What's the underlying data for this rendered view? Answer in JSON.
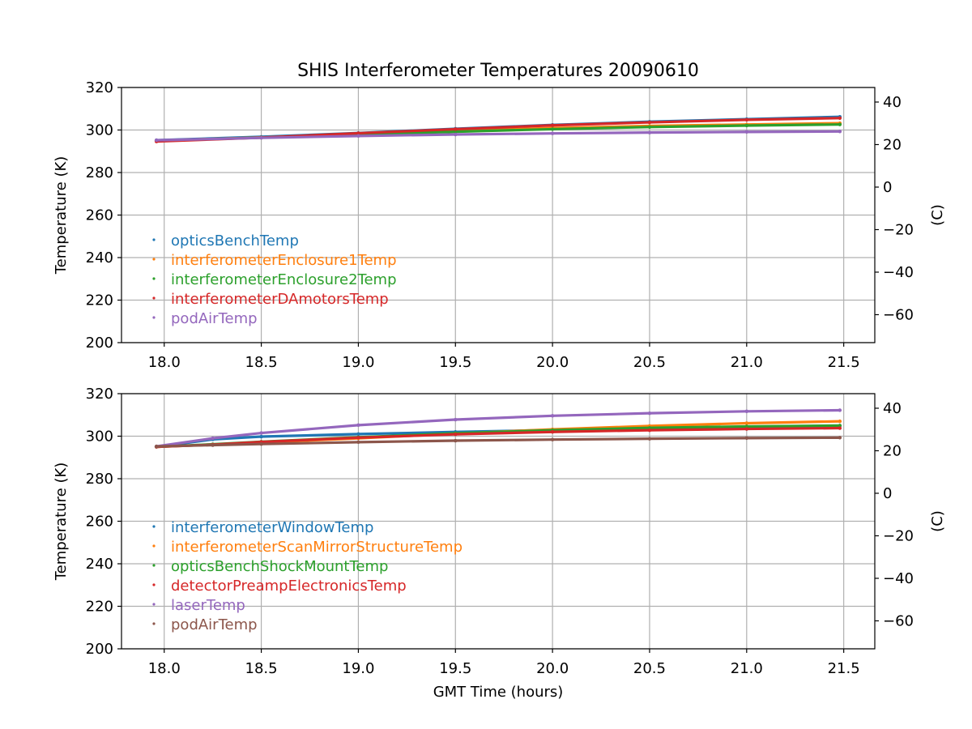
{
  "title": "SHIS Interferometer Temperatures 20090610",
  "xlabel": "GMT Time (hours)",
  "chart_data": [
    {
      "type": "scatter",
      "ylabel": "Temperature (K)",
      "ylabel_right": "(C)",
      "xlim": [
        17.78,
        21.66
      ],
      "ylim": [
        200,
        320
      ],
      "xticks": [
        18.0,
        18.5,
        19.0,
        19.5,
        20.0,
        20.5,
        21.0,
        21.5
      ],
      "yticks": [
        200,
        220,
        240,
        260,
        280,
        300,
        320
      ],
      "yticks_right": [
        -60,
        -40,
        -20,
        0,
        20,
        40
      ],
      "grid": true,
      "legend_position": "center-left",
      "series": [
        {
          "name": "opticsBenchTemp",
          "color": "#1f77b4",
          "x": [
            17.96,
            18.5,
            19.0,
            19.5,
            20.0,
            20.5,
            21.0,
            21.48
          ],
          "y": [
            295.2,
            296.8,
            298.6,
            300.6,
            302.4,
            303.9,
            305.1,
            306.2
          ]
        },
        {
          "name": "interferometerEnclosure1Temp",
          "color": "#ff7f0e",
          "x": [
            17.96,
            18.5,
            19.0,
            19.5,
            20.0,
            20.5,
            21.0,
            21.48
          ],
          "y": [
            295.0,
            296.5,
            298.0,
            299.6,
            300.9,
            301.9,
            302.6,
            303.2
          ]
        },
        {
          "name": "interferometerEnclosure2Temp",
          "color": "#2ca02c",
          "x": [
            17.96,
            18.5,
            19.0,
            19.5,
            20.0,
            20.5,
            21.0,
            21.48
          ],
          "y": [
            295.0,
            296.4,
            297.8,
            299.2,
            300.4,
            301.4,
            302.1,
            302.6
          ]
        },
        {
          "name": "interferometerDAmotorsTemp",
          "color": "#d62728",
          "x": [
            17.96,
            18.5,
            19.0,
            19.5,
            20.0,
            20.5,
            21.0,
            21.48
          ],
          "y": [
            294.6,
            296.4,
            298.5,
            300.4,
            302.2,
            303.6,
            304.8,
            305.6
          ]
        },
        {
          "name": "podAirTemp",
          "color": "#9467bd",
          "x": [
            17.96,
            18.5,
            19.0,
            19.5,
            20.0,
            20.5,
            21.0,
            21.48
          ],
          "y": [
            295.2,
            296.3,
            297.2,
            297.9,
            298.4,
            298.8,
            299.1,
            299.3
          ]
        }
      ]
    },
    {
      "type": "scatter",
      "ylabel": "Temperature (K)",
      "ylabel_right": "(C)",
      "xlim": [
        17.78,
        21.66
      ],
      "ylim": [
        200,
        320
      ],
      "xticks": [
        18.0,
        18.5,
        19.0,
        19.5,
        20.0,
        20.5,
        21.0,
        21.5
      ],
      "yticks": [
        200,
        220,
        240,
        260,
        280,
        300,
        320
      ],
      "yticks_right": [
        -60,
        -40,
        -20,
        0,
        20,
        40
      ],
      "grid": true,
      "legend_position": "center-left",
      "series": [
        {
          "name": "interferometerWindowTemp",
          "color": "#1f77b4",
          "x": [
            17.96,
            18.25,
            18.5,
            19.0,
            19.5,
            20.0,
            20.5,
            21.0,
            21.48
          ],
          "y": [
            295.0,
            298.5,
            299.8,
            301.0,
            302.0,
            302.9,
            303.6,
            304.3,
            304.9
          ]
        },
        {
          "name": "interferometerScanMirrorStructureTemp",
          "color": "#ff7f0e",
          "x": [
            17.96,
            18.25,
            18.5,
            19.0,
            19.5,
            20.0,
            20.5,
            21.0,
            21.48
          ],
          "y": [
            295.0,
            296.0,
            297.0,
            299.0,
            301.2,
            303.2,
            304.8,
            306.1,
            307.0
          ]
        },
        {
          "name": "opticsBenchShockMountTemp",
          "color": "#2ca02c",
          "x": [
            17.96,
            18.25,
            18.5,
            19.0,
            19.5,
            20.0,
            20.5,
            21.0,
            21.48
          ],
          "y": [
            295.0,
            296.2,
            297.4,
            299.5,
            301.4,
            302.8,
            303.9,
            304.6,
            305.0
          ]
        },
        {
          "name": "detectorPreampElectronicsTemp",
          "color": "#d62728",
          "x": [
            17.96,
            18.25,
            18.5,
            19.0,
            19.5,
            20.0,
            20.5,
            21.0,
            21.48
          ],
          "y": [
            295.0,
            296.0,
            297.3,
            299.3,
            300.9,
            302.0,
            302.8,
            303.4,
            303.8
          ]
        },
        {
          "name": "laserTemp",
          "color": "#9467bd",
          "x": [
            17.96,
            18.25,
            18.5,
            19.0,
            19.5,
            20.0,
            20.5,
            21.0,
            21.48
          ],
          "y": [
            295.2,
            299.0,
            301.5,
            305.2,
            307.8,
            309.6,
            310.8,
            311.7,
            312.2
          ]
        },
        {
          "name": "podAirTemp",
          "color": "#8c564b",
          "x": [
            17.96,
            18.25,
            18.5,
            19.0,
            19.5,
            20.0,
            20.5,
            21.0,
            21.48
          ],
          "y": [
            295.2,
            295.8,
            296.3,
            297.2,
            297.9,
            298.4,
            298.8,
            299.1,
            299.3
          ]
        }
      ]
    }
  ]
}
